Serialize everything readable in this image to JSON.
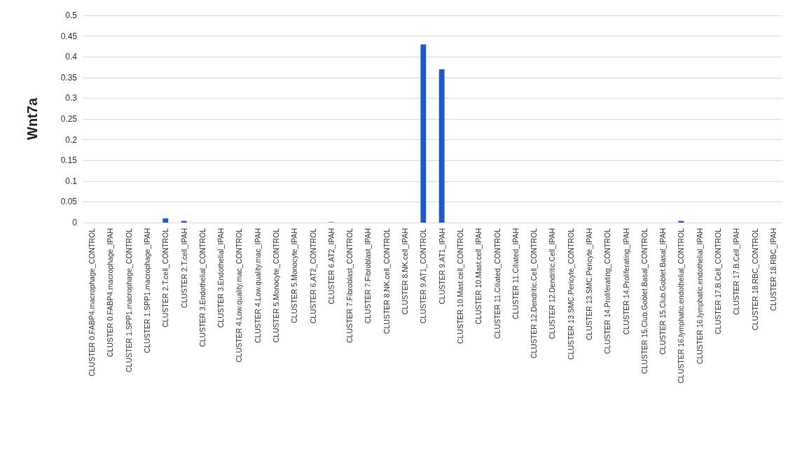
{
  "chart_data": {
    "type": "bar",
    "ylabel": "Wnt7a",
    "categories": [
      "CLUSTER 0.FABP4.macrophage_CONTROL",
      "CLUSTER 0.FABP4.macrophage_IPAH",
      "CLUSTER 1.SPP1.macrophage_CONTROL",
      "CLUSTER 1.SPP1.macrophage_IPAH",
      "CLUSTER 2.T.cell_CONTROL",
      "CLUSTER 2.T.cell_IPAH",
      "CLUSTER 3.Endothelial_CONTROL",
      "CLUSTER 3.Endothelial_IPAH",
      "CLUSTER 4.Low.quality.mac_CONTROL",
      "CLUSTER 4.Low.quality.mac_IPAH",
      "CLUSTER 5.Monocyte_CONTROL",
      "CLUSTER 5.Monocyte_IPAH",
      "CLUSTER 6.AT2_CONTROL",
      "CLUSTER 6.AT2_IPAH",
      "CLUSTER 7.Fibroblast_CONTROL",
      "CLUSTER 7.Fibroblast_IPAH",
      "CLUSTER 8.NK.cell_CONTROL",
      "CLUSTER 8.NK.cell_IPAH",
      "CLUSTER 9.AT1_CONTROL",
      "CLUSTER 9.AT1_IPAH",
      "CLUSTER 10.Mast.cell_CONTROL",
      "CLUSTER 10.Mast.cell_IPAH",
      "CLUSTER 11.Ciliated_CONTROL",
      "CLUSTER 11.Ciliated_IPAH",
      "CLUSTER 12.Dendritic.Cell_CONTROL",
      "CLUSTER 12.Dendritic.Cell_IPAH",
      "CLUSTER 13.SMC.Pericyte_CONTROL",
      "CLUSTER 13.SMC.Pericyte_IPAH",
      "CLUSTER 14.Proliferating_CONTROL",
      "CLUSTER 14.Proliferating_IPAH",
      "CLUSTER 15.Club.Goblet.Basal_CONTROL",
      "CLUSTER 15.Club.Goblet.Basal_IPAH",
      "CLUSTER 16.lymphatic.endothelial_CONTROL",
      "CLUSTER 16.lymphatic.endothelial_IPAH",
      "CLUSTER 17.B.Cell_CONTROL",
      "CLUSTER 17.B.Cell_IPAH",
      "CLUSTER 18.RBC_CONTROL",
      "CLUSTER 18.RBC_IPAH"
    ],
    "values": [
      0,
      0,
      0,
      0,
      0.01,
      0.004,
      0,
      0,
      0,
      0,
      0,
      0,
      0,
      0.001,
      0,
      0,
      0,
      0,
      0.43,
      0.37,
      0,
      0,
      0,
      0,
      0,
      0,
      0,
      0,
      0,
      0,
      0,
      0,
      0.004,
      0,
      0,
      0,
      0,
      0
    ],
    "color": "#1f5bc6",
    "ylim": [
      0,
      0.5
    ],
    "yticks": [
      0,
      0.05,
      0.1,
      0.15,
      0.2,
      0.25,
      0.3,
      0.35,
      0.4,
      0.45,
      0.5
    ],
    "grid": "y"
  }
}
